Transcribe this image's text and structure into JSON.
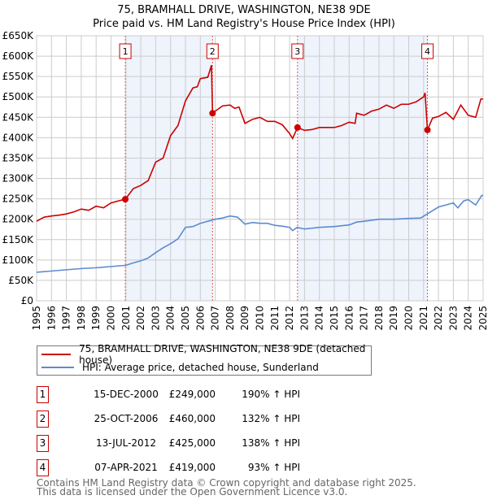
{
  "chart_data": {
    "type": "line",
    "title": "75, BRAMHALL DRIVE, WASHINGTON, NE38 9DE",
    "subtitle": "Price paid vs. HM Land Registry's House Price Index (HPI)",
    "ylim": [
      0,
      650000
    ],
    "xlim": [
      1995,
      2025
    ],
    "yticks": [
      {
        "v": 0,
        "label": "£0"
      },
      {
        "v": 50000,
        "label": "£50K"
      },
      {
        "v": 100000,
        "label": "£100K"
      },
      {
        "v": 150000,
        "label": "£150K"
      },
      {
        "v": 200000,
        "label": "£200K"
      },
      {
        "v": 250000,
        "label": "£250K"
      },
      {
        "v": 300000,
        "label": "£300K"
      },
      {
        "v": 350000,
        "label": "£350K"
      },
      {
        "v": 400000,
        "label": "£400K"
      },
      {
        "v": 450000,
        "label": "£450K"
      },
      {
        "v": 500000,
        "label": "£500K"
      },
      {
        "v": 550000,
        "label": "£550K"
      },
      {
        "v": 600000,
        "label": "£600K"
      },
      {
        "v": 650000,
        "label": "£650K"
      }
    ],
    "xticks": [
      "1995",
      "1996",
      "1997",
      "1998",
      "1999",
      "2000",
      "2001",
      "2002",
      "2003",
      "2004",
      "2005",
      "2006",
      "2007",
      "2008",
      "2009",
      "2010",
      "2011",
      "2012",
      "2013",
      "2014",
      "2015",
      "2016",
      "2017",
      "2018",
      "2019",
      "2020",
      "2021",
      "2022",
      "2023",
      "2024",
      "2025"
    ],
    "grid": true,
    "series": [
      {
        "name": "75, BRAMHALL DRIVE, WASHINGTON, NE38 9DE (detached house)",
        "color": "#cc0000",
        "x": [
          1995,
          1995.5,
          1996,
          1996.5,
          1997,
          1997.5,
          1998,
          1998.5,
          1999,
          1999.5,
          2000,
          2000.5,
          2000.96,
          2001.5,
          2002,
          2002.5,
          2003,
          2003.5,
          2004,
          2004.5,
          2005,
          2005.5,
          2005.8,
          2006,
          2006.5,
          2006.75,
          2006.82,
          2007,
          2007.5,
          2008,
          2008.3,
          2008.6,
          2009,
          2009.5,
          2010,
          2010.5,
          2011,
          2011.5,
          2012,
          2012.2,
          2012.53,
          2013,
          2013.5,
          2014,
          2014.5,
          2015,
          2015.5,
          2016,
          2016.4,
          2016.5,
          2017,
          2017.5,
          2018,
          2018.5,
          2019,
          2019.5,
          2020,
          2020.5,
          2021.0,
          2021.1,
          2021.26,
          2021.6,
          2022,
          2022.5,
          2023,
          2023.5,
          2024,
          2024.5,
          2024.85,
          2025
        ],
        "y": [
          195000,
          205000,
          208000,
          210000,
          213000,
          218000,
          225000,
          222000,
          232000,
          228000,
          240000,
          245000,
          249000,
          275000,
          283000,
          295000,
          340000,
          350000,
          405000,
          430000,
          490000,
          522000,
          525000,
          545000,
          548000,
          578000,
          460000,
          465000,
          478000,
          480000,
          472000,
          475000,
          435000,
          445000,
          450000,
          440000,
          440000,
          432000,
          410000,
          398000,
          425000,
          418000,
          420000,
          425000,
          425000,
          425000,
          430000,
          438000,
          435000,
          460000,
          455000,
          465000,
          470000,
          480000,
          472000,
          482000,
          482000,
          488000,
          500000,
          510000,
          419000,
          448000,
          452000,
          462000,
          445000,
          480000,
          455000,
          450000,
          495000,
          495000
        ]
      },
      {
        "name": "HPI: Average price, detached house, Sunderland",
        "color": "#5b8bd0",
        "x": [
          1995,
          1996,
          1997,
          1998,
          1999,
          2000,
          2001,
          2001.5,
          2002,
          2002.5,
          2003,
          2003.5,
          2004,
          2004.5,
          2005,
          2005.5,
          2006,
          2006.5,
          2007,
          2007.5,
          2008,
          2008.5,
          2009,
          2009.5,
          2010,
          2010.5,
          2011,
          2011.5,
          2012,
          2012.2,
          2012.5,
          2013,
          2014,
          2015,
          2016,
          2016.5,
          2017,
          2018,
          2019,
          2020,
          2020.8,
          2021.2,
          2022,
          2022.5,
          2023,
          2023.3,
          2023.7,
          2024,
          2024.5,
          2024.9,
          2025
        ],
        "y": [
          70000,
          73000,
          76000,
          79000,
          81000,
          84000,
          87000,
          93000,
          98000,
          105000,
          118000,
          130000,
          140000,
          152000,
          180000,
          182000,
          190000,
          195000,
          200000,
          203000,
          208000,
          205000,
          188000,
          192000,
          190000,
          190000,
          185000,
          183000,
          180000,
          172000,
          180000,
          176000,
          180000,
          182000,
          186000,
          193000,
          195000,
          200000,
          200000,
          202000,
          203000,
          212000,
          230000,
          235000,
          240000,
          228000,
          245000,
          248000,
          235000,
          258000,
          258000
        ]
      }
    ],
    "sales": [
      {
        "n": "1",
        "x": 2000.96,
        "y": 249000
      },
      {
        "n": "2",
        "x": 2006.82,
        "y": 460000
      },
      {
        "n": "3",
        "x": 2012.53,
        "y": 425000
      },
      {
        "n": "4",
        "x": 2021.26,
        "y": 419000
      }
    ],
    "shaded": [
      [
        2000.96,
        2006.82
      ],
      [
        2012.53,
        2021.26
      ]
    ]
  },
  "legend": [
    {
      "label": "75, BRAMHALL DRIVE, WASHINGTON, NE38 9DE (detached house)",
      "color": "#cc0000"
    },
    {
      "label": "HPI: Average price, detached house, Sunderland",
      "color": "#5b8bd0"
    }
  ],
  "table": [
    {
      "n": "1",
      "date": "15-DEC-2000",
      "price": "£249,000",
      "hpi": "190% ↑ HPI"
    },
    {
      "n": "2",
      "date": "25-OCT-2006",
      "price": "£460,000",
      "hpi": "132% ↑ HPI"
    },
    {
      "n": "3",
      "date": "13-JUL-2012",
      "price": "£425,000",
      "hpi": "138% ↑ HPI"
    },
    {
      "n": "4",
      "date": "07-APR-2021",
      "price": "£419,000",
      "hpi": "93% ↑ HPI"
    }
  ],
  "footer": {
    "line1": "Contains HM Land Registry data © Crown copyright and database right 2025.",
    "line2": "This data is licensed under the Open Government Licence v3.0."
  }
}
